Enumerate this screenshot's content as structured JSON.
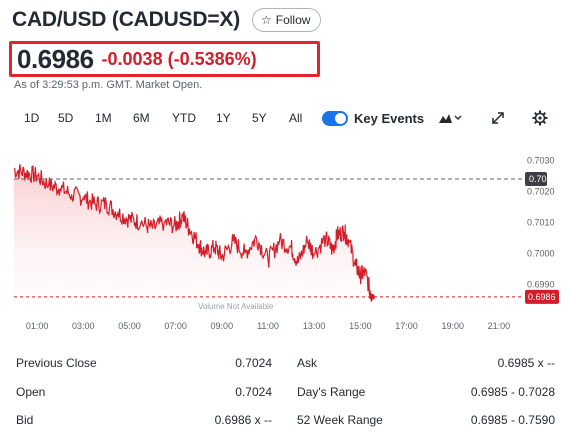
{
  "header": {
    "title": "CAD/USD (CADUSD=X)",
    "follow_label": "Follow"
  },
  "quote": {
    "price": "0.6986",
    "change": "-0.0038 (-0.5386%)",
    "as_of": "As of 3:29:53 p.m. GMT. Market Open."
  },
  "colors": {
    "accent": "#1a73e8",
    "negative": "#d21e2b",
    "highlight_box": "#e0262c"
  },
  "toolbar": {
    "ranges": [
      "1D",
      "5D",
      "1M",
      "6M",
      "YTD",
      "1Y",
      "5Y",
      "All"
    ],
    "key_events_label": "Key Events",
    "key_events_on": true,
    "chart_type_icon": "mountain-chart-icon",
    "expand_icon": "expand-icon",
    "settings_icon": "gear-icon"
  },
  "chart": {
    "volume_note": "Volume Not Available",
    "prev_close_tag": "0.70",
    "last_price_tag": "0.6986"
  },
  "chart_data": {
    "type": "area",
    "title": "",
    "xlabel": "",
    "ylabel": "",
    "x_ticks": [
      "01:00",
      "03:00",
      "05:00",
      "07:00",
      "09:00",
      "11:00",
      "13:00",
      "15:00",
      "17:00",
      "19:00",
      "21:00"
    ],
    "y_ticks": [
      "0.7030",
      "0.7020",
      "0.7010",
      "0.7000",
      "0.6990"
    ],
    "ylim": [
      0.6985,
      0.7034
    ],
    "xlim": [
      0,
      22
    ],
    "previous_close": 0.7024,
    "last": 0.6986,
    "series": [
      {
        "x": [
          0,
          0.5,
          1,
          1.5,
          2,
          2.5,
          3,
          3.5,
          4,
          4.5,
          5,
          5.5,
          6,
          6.5,
          7,
          7.3,
          7.6,
          8,
          8.3,
          8.7,
          9,
          9.5,
          10,
          10.5,
          11,
          11.5,
          12,
          12.3,
          12.7,
          13,
          13.5,
          13.8,
          14,
          14.3,
          14.5,
          14.8,
          15,
          15.2,
          15.5
        ],
        "values": [
          0.7027,
          0.7026,
          0.7025,
          0.7022,
          0.7021,
          0.7019,
          0.7018,
          0.7016,
          0.7016,
          0.7013,
          0.7011,
          0.701,
          0.7008,
          0.701,
          0.7009,
          0.7012,
          0.7008,
          0.7003,
          0.7,
          0.7002,
          0.6999,
          0.7004,
          0.7,
          0.7005,
          0.6998,
          0.7004,
          0.7002,
          0.6997,
          0.7004,
          0.7,
          0.7005,
          0.7001,
          0.7006,
          0.7007,
          0.7004,
          0.6996,
          0.6993,
          0.6994,
          0.6986
        ]
      }
    ]
  },
  "stats": {
    "left": [
      {
        "label": "Previous Close",
        "value": "0.7024"
      },
      {
        "label": "Open",
        "value": "0.7024"
      },
      {
        "label": "Bid",
        "value": "0.6986 x --"
      }
    ],
    "right": [
      {
        "label": "Ask",
        "value": "0.6985 x --"
      },
      {
        "label": "Day's Range",
        "value": "0.6985 - 0.7028"
      },
      {
        "label": "52 Week Range",
        "value": "0.6985 - 0.7590"
      }
    ]
  }
}
